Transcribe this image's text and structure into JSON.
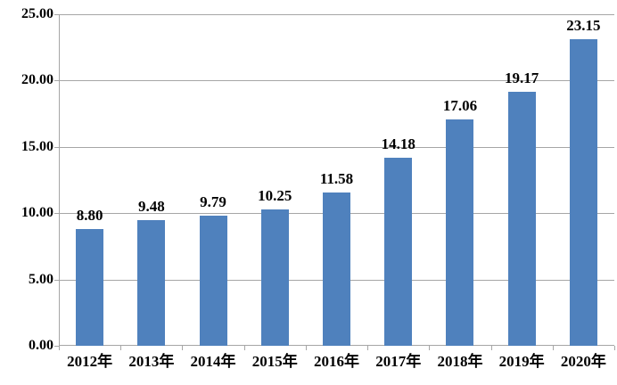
{
  "chart_data": {
    "type": "bar",
    "title": "",
    "xlabel": "",
    "ylabel": "",
    "categories": [
      "2012年",
      "2013年",
      "2014年",
      "2015年",
      "2016年",
      "2017年",
      "2018年",
      "2019年",
      "2020年"
    ],
    "values": [
      8.8,
      9.48,
      9.79,
      10.25,
      11.58,
      14.18,
      17.06,
      19.17,
      23.15
    ],
    "value_labels": [
      "8.80",
      "9.48",
      "9.79",
      "10.25",
      "11.58",
      "14.18",
      "17.06",
      "19.17",
      "23.15"
    ],
    "y_ticks": [
      0,
      5,
      10,
      15,
      20,
      25
    ],
    "y_tick_labels": [
      "0.00",
      "5.00",
      "10.00",
      "15.00",
      "20.00",
      "25.00"
    ],
    "ylim": [
      0,
      25
    ],
    "grid": true,
    "legend": "none",
    "colors": {
      "bar_fill": "#4f81bd",
      "gridline": "#a6a6a6",
      "axis_line": "#a6a6a6",
      "text": "#000000",
      "background": "#ffffff"
    }
  }
}
